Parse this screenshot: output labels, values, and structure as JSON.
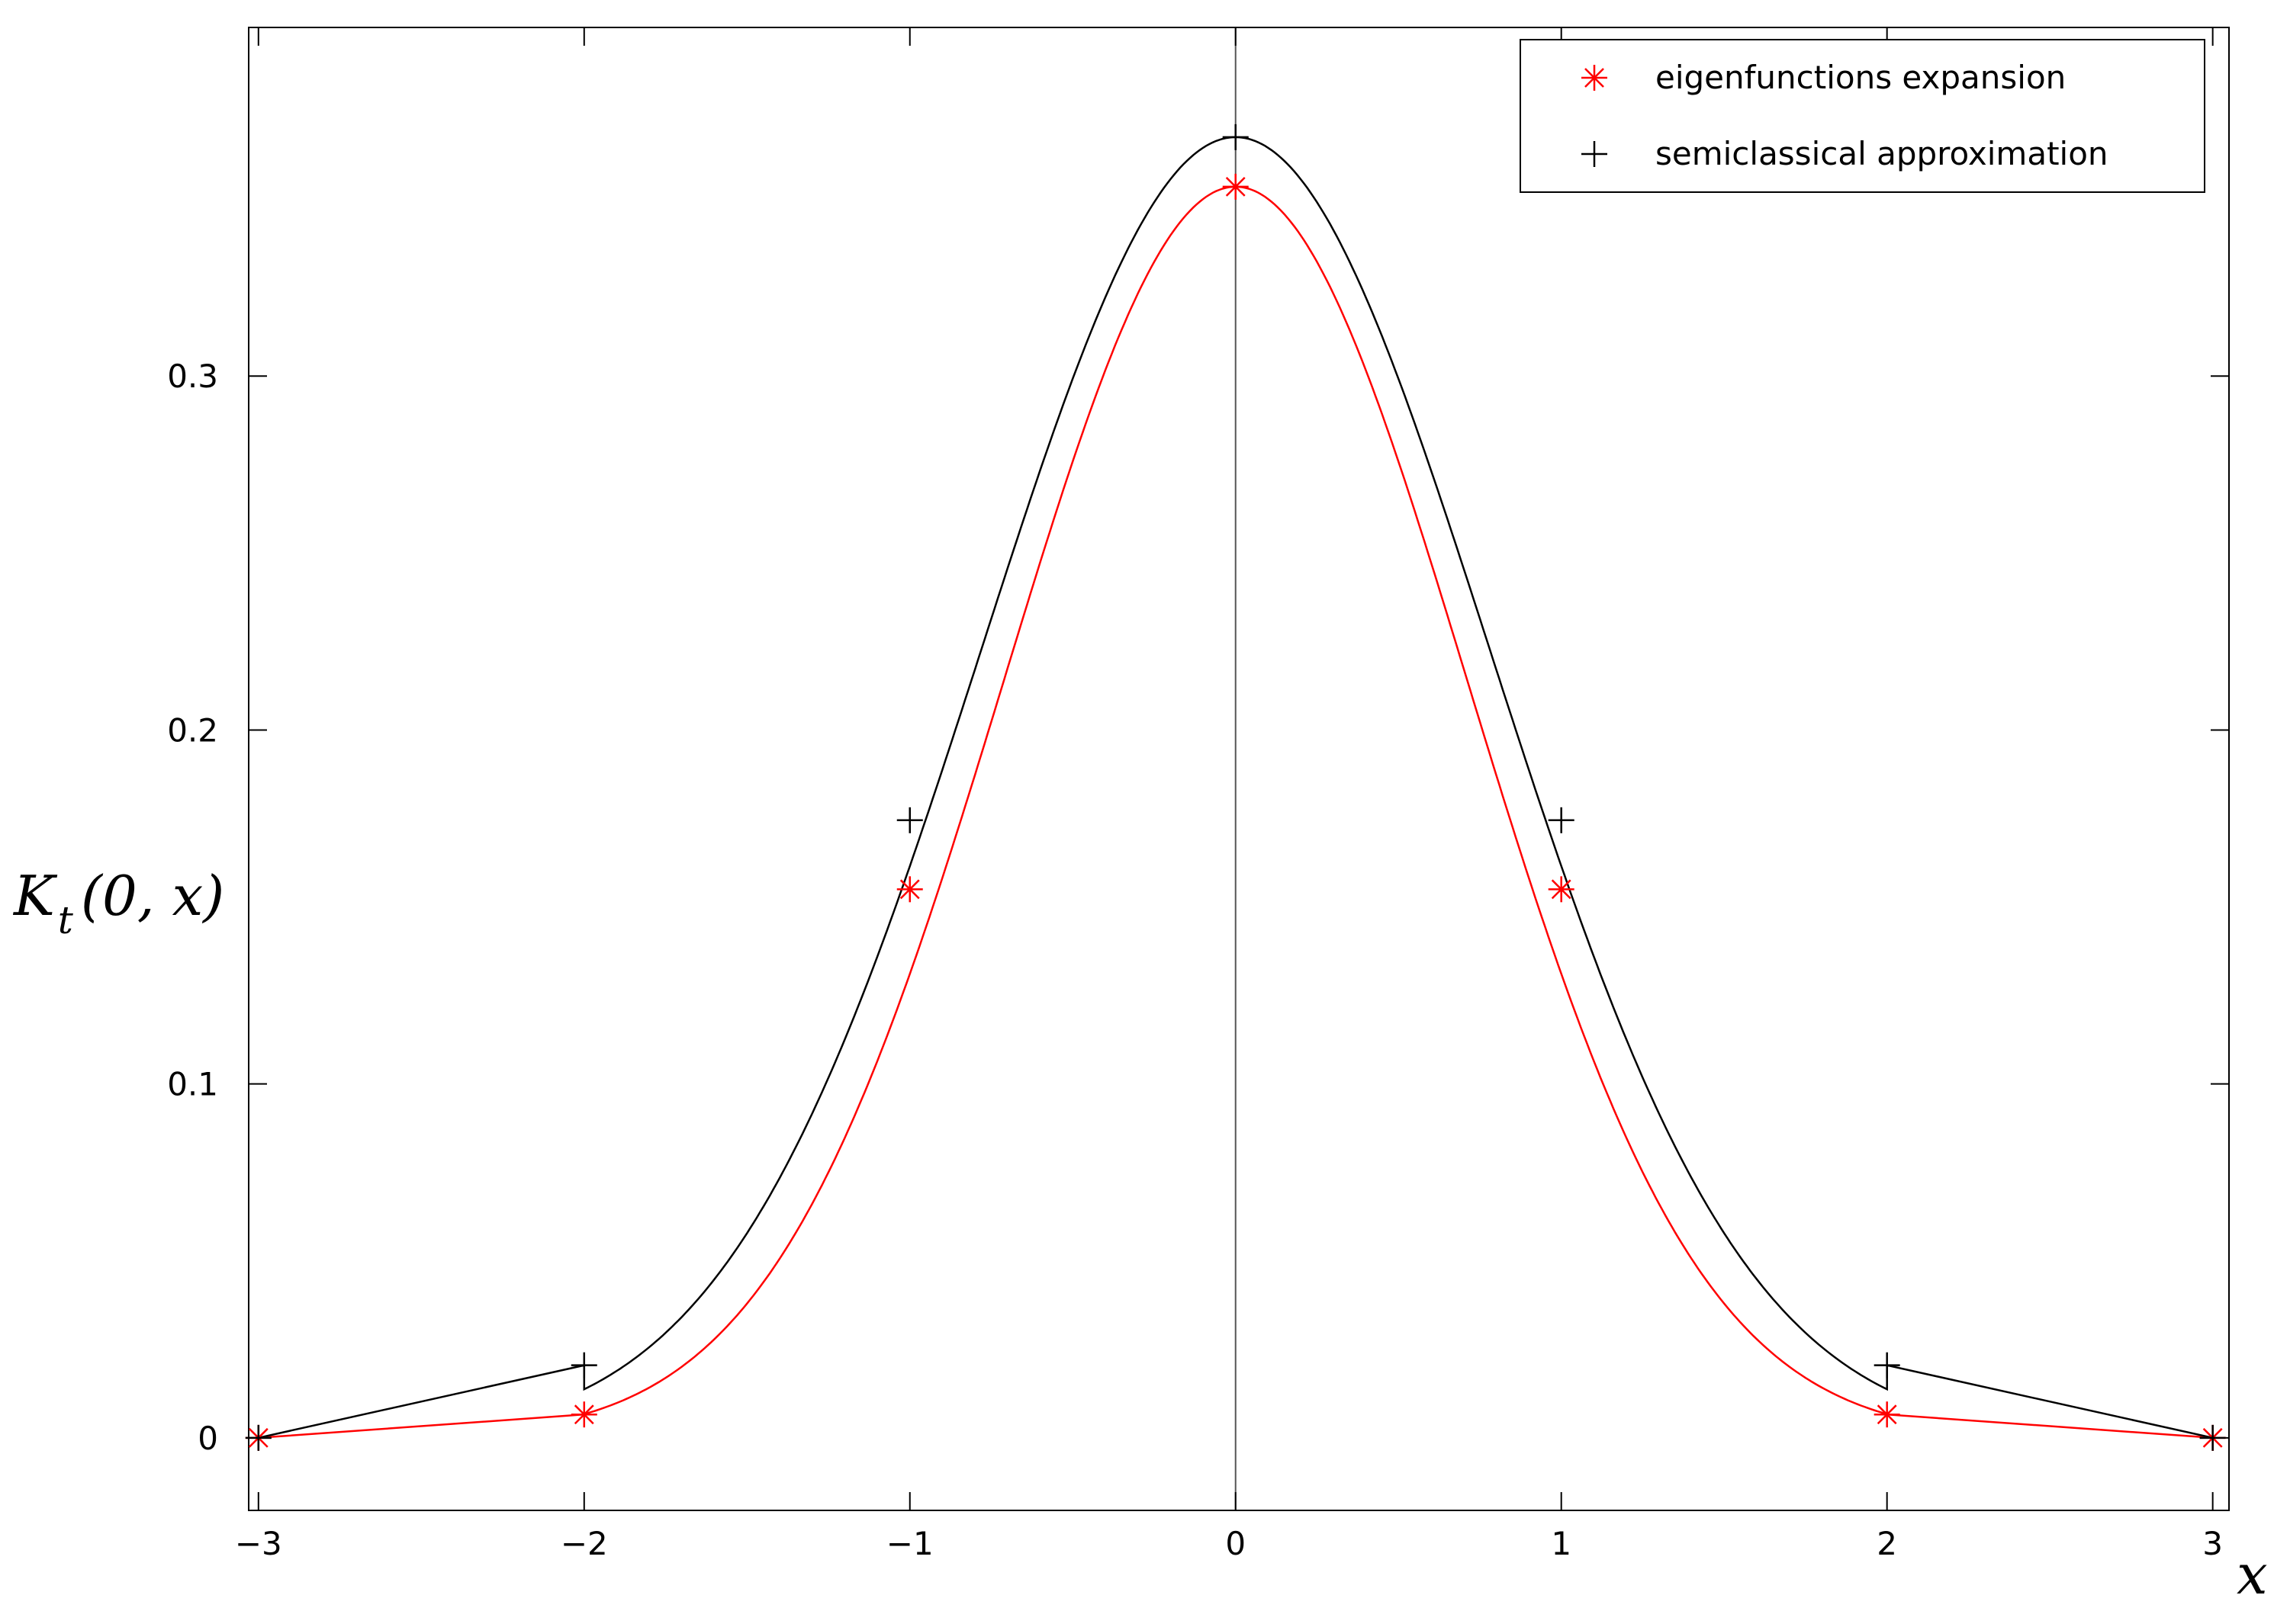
{
  "chart_data": {
    "type": "line",
    "xlabel": "x",
    "ylabel": {
      "main": "K",
      "sub": "t",
      "args": "(0, x)"
    },
    "xlim": [
      -3.03,
      3.05
    ],
    "ylim": [
      -0.0205,
      0.3985
    ],
    "x_ticks": [
      -3,
      -2,
      -1,
      0,
      1,
      2,
      3
    ],
    "x_tick_labels": [
      "−3",
      "−2",
      "−1",
      "0",
      "1",
      "2",
      "3"
    ],
    "y_ticks": [
      0,
      0.1,
      0.2,
      0.3
    ],
    "y_tick_labels": [
      "0",
      "0.1",
      "0.2",
      "0.3"
    ],
    "vertical_reference_line_x": 0,
    "grid": false,
    "legend_position": "top-right",
    "series": [
      {
        "name": "eigenfunctions expansion",
        "color": "#ff0000",
        "marker": "asterisk-icon",
        "marker_points": [
          {
            "x": -3,
            "y": 0.0
          },
          {
            "x": -2,
            "y": 0.0066
          },
          {
            "x": -1,
            "y": 0.155
          },
          {
            "x": 0,
            "y": 0.3535
          },
          {
            "x": 1,
            "y": 0.155
          },
          {
            "x": 2,
            "y": 0.0066
          },
          {
            "x": 3,
            "y": 0.0
          }
        ],
        "curve": {
          "kind": "gaussian-between",
          "x_range": [
            -2,
            2
          ],
          "peak": 0.3535,
          "sigma": 0.71,
          "outer_segments": [
            [
              {
                "x": -3,
                "y": 0.0
              },
              {
                "x": -2,
                "y": 0.0066
              }
            ],
            [
              {
                "x": 2,
                "y": 0.0066
              },
              {
                "x": 3,
                "y": 0.0
              }
            ]
          ]
        }
      },
      {
        "name": "semiclassical approximation",
        "color": "#000000",
        "marker": "plus-icon",
        "marker_points": [
          {
            "x": -3,
            "y": 0.0
          },
          {
            "x": -2,
            "y": 0.0205
          },
          {
            "x": -1,
            "y": 0.1745
          },
          {
            "x": 0,
            "y": 0.3675
          },
          {
            "x": 1,
            "y": 0.1745
          },
          {
            "x": 2,
            "y": 0.0205
          },
          {
            "x": 3,
            "y": 0.0
          }
        ],
        "curve": {
          "kind": "gaussian-between",
          "x_range": [
            -2,
            2
          ],
          "peak": 0.3675,
          "sigma": 0.78,
          "outer_segments": [
            [
              {
                "x": -3,
                "y": 0.0
              },
              {
                "x": -2,
                "y": 0.0205
              }
            ],
            [
              {
                "x": 2,
                "y": 0.0205
              },
              {
                "x": 3,
                "y": 0.0
              }
            ]
          ]
        }
      }
    ]
  }
}
